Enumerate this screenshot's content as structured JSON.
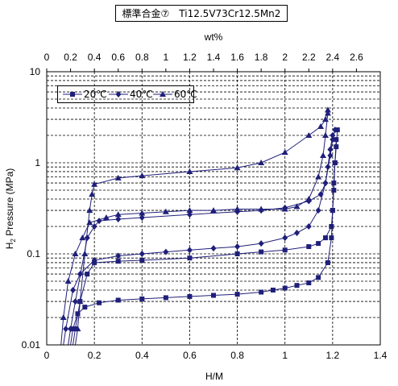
{
  "chart_data": {
    "type": "line",
    "title": "標準合金⑦　Ti12.5V73Cr12.5Mn2",
    "xlabel": "H/M",
    "ylabel_main": "H",
    "ylabel_sub": "2",
    "ylabel_rest": " Pressure (MPa)",
    "top_xlabel": "wt%",
    "y_scale": "log",
    "xlim": [
      0,
      1.4
    ],
    "ylim": [
      0.01,
      10
    ],
    "top_xlim": [
      0,
      2.8
    ],
    "x_ticks": [
      "0",
      "0.2",
      "0.4",
      "0.6",
      "0.8",
      "1",
      "1.2",
      "1.4"
    ],
    "top_x_ticks": [
      "0",
      "0.2",
      "0.4",
      "0.6",
      "0.8",
      "1",
      "1.2",
      "1.4",
      "1.6",
      "1.8",
      "2",
      "2.2",
      "2.4",
      "2.6"
    ],
    "y_ticks": [
      "0.01",
      "0.1",
      "1",
      "10"
    ],
    "grid": "dashed",
    "legend_position": "top-left",
    "series": [
      {
        "name": "20℃",
        "marker": "square",
        "color": "#1f1f7a",
        "absorption": [
          [
            0.1,
            0.01
          ],
          [
            0.11,
            0.015
          ],
          [
            0.13,
            0.022
          ],
          [
            0.16,
            0.026
          ],
          [
            0.22,
            0.029
          ],
          [
            0.3,
            0.031
          ],
          [
            0.4,
            0.032
          ],
          [
            0.5,
            0.033
          ],
          [
            0.6,
            0.034
          ],
          [
            0.7,
            0.035
          ],
          [
            0.8,
            0.036
          ],
          [
            0.9,
            0.038
          ],
          [
            0.95,
            0.04
          ],
          [
            1.0,
            0.042
          ],
          [
            1.05,
            0.045
          ],
          [
            1.1,
            0.048
          ],
          [
            1.14,
            0.055
          ],
          [
            1.18,
            0.08
          ],
          [
            1.195,
            0.15
          ],
          [
            1.2,
            0.3
          ],
          [
            1.205,
            0.6
          ],
          [
            1.21,
            1.0
          ],
          [
            1.215,
            1.5
          ],
          [
            1.22,
            2.3
          ]
        ],
        "desorption": [
          [
            1.215,
            1.8
          ],
          [
            1.21,
            1.0
          ],
          [
            1.205,
            0.5
          ],
          [
            1.2,
            0.3
          ],
          [
            1.195,
            0.2
          ],
          [
            1.17,
            0.15
          ],
          [
            1.14,
            0.13
          ],
          [
            1.1,
            0.12
          ],
          [
            1.0,
            0.11
          ],
          [
            0.9,
            0.105
          ],
          [
            0.8,
            0.1
          ],
          [
            0.6,
            0.09
          ],
          [
            0.4,
            0.085
          ],
          [
            0.3,
            0.083
          ],
          [
            0.2,
            0.08
          ],
          [
            0.17,
            0.06
          ],
          [
            0.14,
            0.03
          ],
          [
            0.12,
            0.015
          ],
          [
            0.11,
            0.01
          ]
        ]
      },
      {
        "name": "40℃",
        "marker": "diamond",
        "color": "#1f1f7a",
        "absorption": [
          [
            0.07,
            0.01
          ],
          [
            0.08,
            0.015
          ],
          [
            0.11,
            0.04
          ],
          [
            0.14,
            0.06
          ],
          [
            0.2,
            0.085
          ],
          [
            0.3,
            0.095
          ],
          [
            0.4,
            0.1
          ],
          [
            0.5,
            0.105
          ],
          [
            0.6,
            0.11
          ],
          [
            0.7,
            0.115
          ],
          [
            0.8,
            0.12
          ],
          [
            0.9,
            0.13
          ],
          [
            1.0,
            0.15
          ],
          [
            1.05,
            0.17
          ],
          [
            1.1,
            0.2
          ],
          [
            1.14,
            0.3
          ],
          [
            1.17,
            0.6
          ],
          [
            1.19,
            1.2
          ],
          [
            1.2,
            1.8
          ],
          [
            1.21,
            2.3
          ]
        ],
        "desorption": [
          [
            1.2,
            2.0
          ],
          [
            1.19,
            1.4
          ],
          [
            1.18,
            0.9
          ],
          [
            1.17,
            0.6
          ],
          [
            1.15,
            0.45
          ],
          [
            1.1,
            0.38
          ],
          [
            1.0,
            0.32
          ],
          [
            0.9,
            0.3
          ],
          [
            0.8,
            0.29
          ],
          [
            0.6,
            0.27
          ],
          [
            0.4,
            0.25
          ],
          [
            0.3,
            0.24
          ],
          [
            0.22,
            0.23
          ],
          [
            0.2,
            0.2
          ],
          [
            0.17,
            0.15
          ],
          [
            0.12,
            0.03
          ],
          [
            0.1,
            0.015
          ],
          [
            0.09,
            0.01
          ]
        ]
      },
      {
        "name": "60℃",
        "marker": "triangle",
        "color": "#1f1f7a",
        "absorption": [
          [
            0.06,
            0.01
          ],
          [
            0.07,
            0.02
          ],
          [
            0.09,
            0.05
          ],
          [
            0.12,
            0.1
          ],
          [
            0.15,
            0.15
          ],
          [
            0.18,
            0.22
          ],
          [
            0.25,
            0.25
          ],
          [
            0.3,
            0.27
          ],
          [
            0.4,
            0.28
          ],
          [
            0.5,
            0.29
          ],
          [
            0.6,
            0.3
          ],
          [
            0.7,
            0.3
          ],
          [
            0.8,
            0.31
          ],
          [
            0.9,
            0.31
          ],
          [
            1.0,
            0.31
          ],
          [
            1.05,
            0.33
          ],
          [
            1.1,
            0.4
          ],
          [
            1.14,
            0.7
          ],
          [
            1.16,
            1.2
          ],
          [
            1.17,
            2.0
          ],
          [
            1.18,
            3.5
          ]
        ],
        "desorption": [
          [
            1.18,
            3.8
          ],
          [
            1.17,
            3.0
          ],
          [
            1.15,
            2.5
          ],
          [
            1.1,
            2.0
          ],
          [
            1.0,
            1.3
          ],
          [
            0.9,
            1.0
          ],
          [
            0.8,
            0.88
          ],
          [
            0.6,
            0.8
          ],
          [
            0.4,
            0.72
          ],
          [
            0.3,
            0.68
          ],
          [
            0.2,
            0.58
          ],
          [
            0.19,
            0.45
          ],
          [
            0.18,
            0.3
          ],
          [
            0.16,
            0.1
          ],
          [
            0.14,
            0.03
          ],
          [
            0.13,
            0.015
          ],
          [
            0.12,
            0.01
          ]
        ]
      }
    ]
  }
}
